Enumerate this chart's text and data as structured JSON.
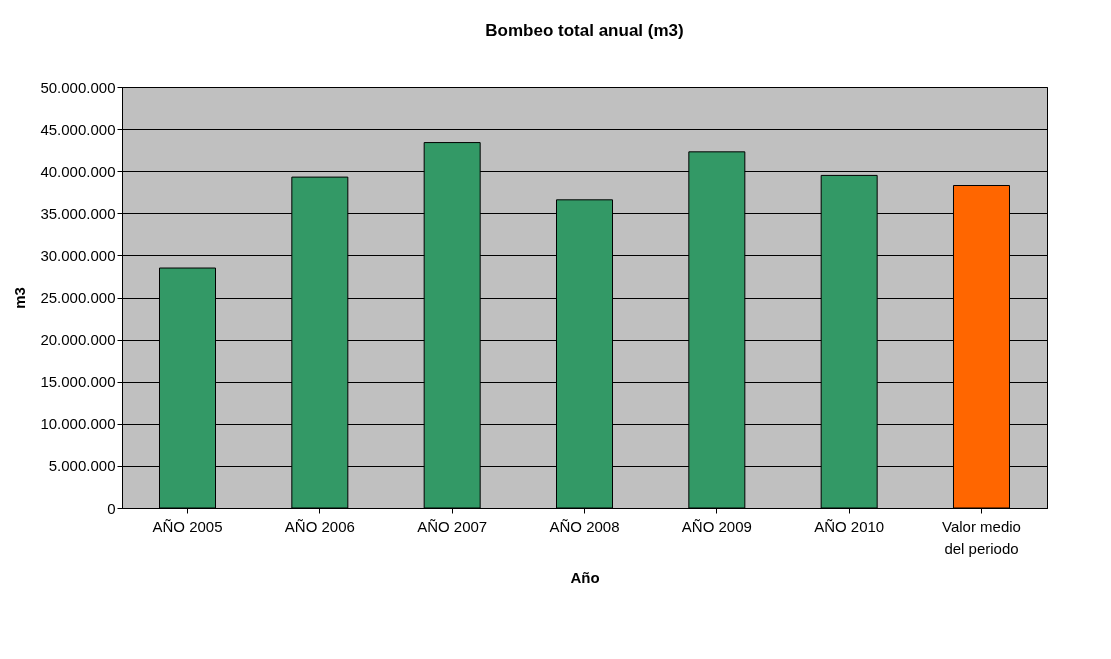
{
  "chart_data": {
    "type": "bar",
    "title": "Bombeo total anual (m3)",
    "xlabel": "Año",
    "ylabel": "m3",
    "categories": [
      "AÑO 2005",
      "AÑO 2006",
      "AÑO 2007",
      "AÑO 2008",
      "AÑO 2009",
      "AÑO 2010",
      "Valor medio del periodo"
    ],
    "values": [
      28500000,
      39300000,
      43400000,
      36600000,
      42300000,
      39500000,
      38300000
    ],
    "colors": [
      "#339966",
      "#339966",
      "#339966",
      "#339966",
      "#339966",
      "#339966",
      "#ff6600"
    ],
    "ylim": [
      0,
      50000000
    ],
    "yticks": [
      {
        "value": 0,
        "label": "0"
      },
      {
        "value": 5000000,
        "label": "5.000.000"
      },
      {
        "value": 10000000,
        "label": "10.000.000"
      },
      {
        "value": 15000000,
        "label": "15.000.000"
      },
      {
        "value": 20000000,
        "label": "20.000.000"
      },
      {
        "value": 25000000,
        "label": "25.000.000"
      },
      {
        "value": 30000000,
        "label": "30.000.000"
      },
      {
        "value": 35000000,
        "label": "35.000.000"
      },
      {
        "value": 40000000,
        "label": "40.000.000"
      },
      {
        "value": 45000000,
        "label": "45.000.000"
      },
      {
        "value": 50000000,
        "label": "50.000.000"
      }
    ],
    "grid": "y"
  }
}
